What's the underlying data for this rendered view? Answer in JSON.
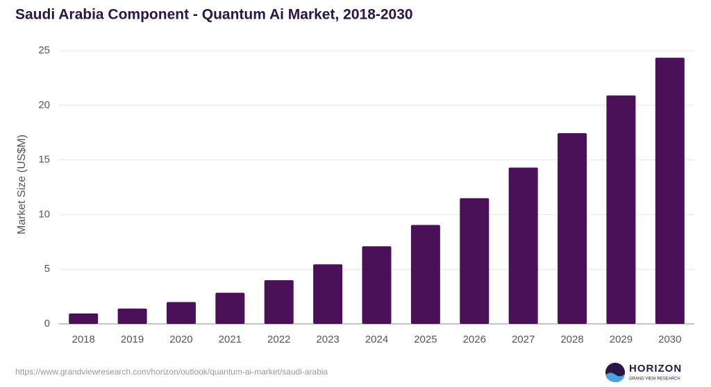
{
  "chart_data": {
    "type": "bar",
    "title": "Saudi Arabia Component - Quantum Ai Market, 2018-2030",
    "y_label": "Market Size (US$M)",
    "categories": [
      "2018",
      "2019",
      "2020",
      "2021",
      "2022",
      "2023",
      "2024",
      "2025",
      "2026",
      "2027",
      "2028",
      "2029",
      "2030"
    ],
    "values": [
      0.95,
      1.4,
      2.0,
      2.85,
      4.0,
      5.45,
      7.1,
      9.05,
      11.5,
      14.3,
      17.45,
      20.9,
      24.35
    ],
    "color": "#4a1158",
    "ylim": [
      0,
      25
    ],
    "yticks": [
      0,
      5,
      10,
      15,
      20,
      25
    ],
    "grid": true
  },
  "footer": {
    "source": "https://www.grandviewresearch.com/horizon/outlook/quantum-ai-market/saudi-arabia",
    "logo_name": "HORIZON",
    "logo_tagline": "GRAND VIEW RESEARCH"
  }
}
